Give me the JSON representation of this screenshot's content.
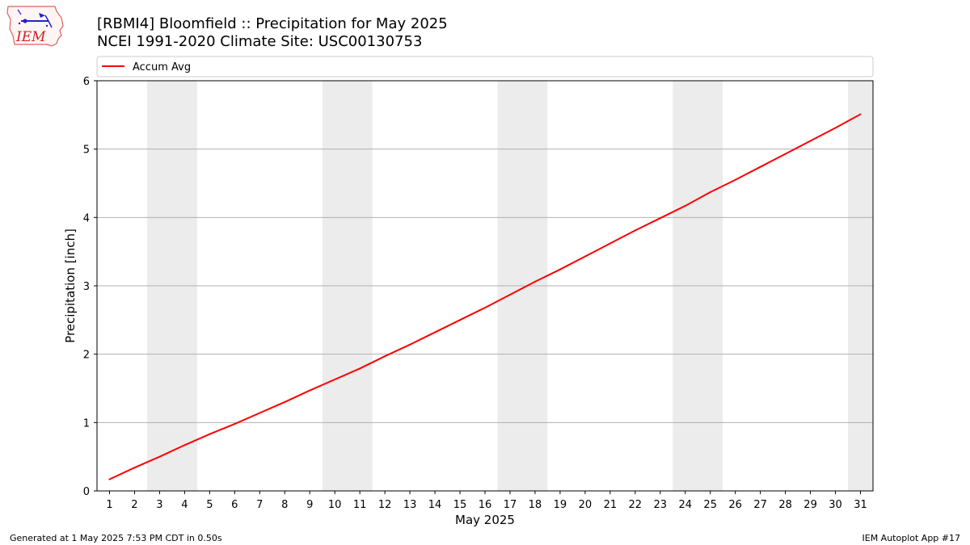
{
  "logo": {
    "text": "IEM",
    "colors": {
      "outline": "#e06060",
      "icons": "#2222cc"
    }
  },
  "title": {
    "line1": "[RBMI4] Bloomfield :: Precipitation for May 2025",
    "line2": "NCEI 1991-2020 Climate Site: USC00130753"
  },
  "footer": {
    "left": "Generated at 1 May 2025 7:53 PM CDT in 0.50s",
    "right": "IEM Autoplot App #17"
  },
  "chart_data": {
    "type": "line",
    "xlabel": "May 2025",
    "ylabel": "Precipitation [inch]",
    "x_ticks": [
      "1",
      "2",
      "3",
      "4",
      "5",
      "6",
      "7",
      "8",
      "9",
      "10",
      "11",
      "12",
      "13",
      "14",
      "15",
      "16",
      "17",
      "18",
      "19",
      "20",
      "21",
      "22",
      "23",
      "24",
      "25",
      "26",
      "27",
      "28",
      "29",
      "30",
      "31"
    ],
    "xlim": [
      0.5,
      31.5
    ],
    "ylim": [
      0,
      6
    ],
    "y_ticks": [
      "0",
      "1",
      "2",
      "3",
      "4",
      "5",
      "6"
    ],
    "grid": "horizontal",
    "legend_position": "top",
    "weekend_shading": [
      [
        2.5,
        4.5
      ],
      [
        9.5,
        11.5
      ],
      [
        16.5,
        18.5
      ],
      [
        23.5,
        25.5
      ],
      [
        30.5,
        31.5
      ]
    ],
    "shade_color": "#ececec",
    "series": [
      {
        "name": "Accum Avg",
        "color": "#ff0000",
        "x": [
          1,
          2,
          3,
          4,
          5,
          6,
          7,
          8,
          9,
          10,
          11,
          12,
          13,
          14,
          15,
          16,
          17,
          18,
          19,
          20,
          21,
          22,
          23,
          24,
          25,
          26,
          27,
          28,
          29,
          30,
          31
        ],
        "values": [
          0.17,
          0.34,
          0.5,
          0.67,
          0.83,
          0.98,
          1.14,
          1.3,
          1.47,
          1.63,
          1.79,
          1.97,
          2.14,
          2.32,
          2.5,
          2.68,
          2.87,
          3.06,
          3.24,
          3.43,
          3.62,
          3.81,
          3.99,
          4.17,
          4.37,
          4.55,
          4.74,
          4.93,
          5.12,
          5.31,
          5.51
        ]
      }
    ]
  }
}
